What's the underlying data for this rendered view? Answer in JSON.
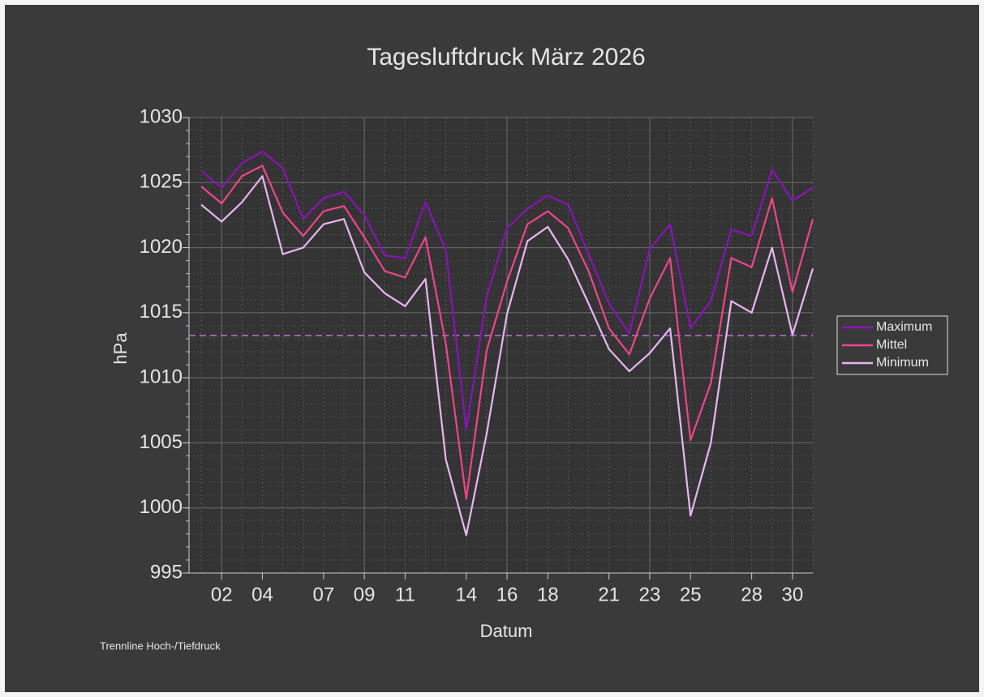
{
  "chart_data": {
    "type": "line",
    "title": "Tagesluftdruck März 2026",
    "xlabel": "Datum",
    "ylabel": "hPa",
    "x": [
      1,
      2,
      3,
      4,
      5,
      6,
      7,
      8,
      9,
      10,
      11,
      12,
      13,
      14,
      15,
      16,
      17,
      18,
      19,
      20,
      21,
      22,
      23,
      24,
      25,
      26,
      27,
      28,
      29,
      30,
      31
    ],
    "series": [
      {
        "name": "Maximum",
        "color": "#8a12b8",
        "values": [
          1025.9,
          1024.6,
          1026.5,
          1027.4,
          1026.1,
          1022.2,
          1023.8,
          1024.3,
          1022.5,
          1019.4,
          1019.2,
          1023.5,
          1019.8,
          1006.0,
          1016.2,
          1021.5,
          1023.0,
          1024.0,
          1023.3,
          1019.5,
          1015.7,
          1013.4,
          1019.9,
          1021.8,
          1013.8,
          1015.9,
          1021.4,
          1020.9,
          1026.0,
          1023.6,
          1024.6
        ]
      },
      {
        "name": "Mittel",
        "color": "#f0448c",
        "values": [
          1024.7,
          1023.4,
          1025.5,
          1026.3,
          1022.7,
          1020.9,
          1022.8,
          1023.2,
          1020.8,
          1018.2,
          1017.7,
          1020.8,
          1012.6,
          1000.7,
          1012.1,
          1017.4,
          1021.8,
          1022.8,
          1021.5,
          1018.2,
          1013.8,
          1011.8,
          1016.1,
          1019.2,
          1005.2,
          1009.6,
          1019.2,
          1018.5,
          1023.8,
          1016.6,
          1022.2
        ]
      },
      {
        "name": "Minimum",
        "color": "#e8b6f2",
        "values": [
          1023.3,
          1022.0,
          1023.5,
          1025.5,
          1019.5,
          1020.0,
          1021.8,
          1022.2,
          1018.1,
          1016.5,
          1015.5,
          1017.6,
          1003.7,
          997.9,
          1005.7,
          1014.9,
          1020.5,
          1021.6,
          1019.1,
          1015.7,
          1012.2,
          1010.5,
          1011.9,
          1013.8,
          999.4,
          1005.0,
          1015.9,
          1015.0,
          1020.0,
          1013.3,
          1018.4
        ]
      }
    ],
    "xlim": [
      0.4,
      31
    ],
    "xticks": [
      {
        "value": 2,
        "label": "02"
      },
      {
        "value": 4,
        "label": "04"
      },
      {
        "value": 7,
        "label": "07"
      },
      {
        "value": 9,
        "label": "09"
      },
      11,
      14,
      16,
      18,
      21,
      23,
      25,
      28,
      30
    ],
    "xgrid_major": [
      2,
      9,
      16,
      23,
      30
    ],
    "ylim": [
      995,
      1030
    ],
    "yticks": [
      995,
      1000,
      1005,
      1010,
      1015,
      1020,
      1025,
      1030
    ],
    "grid": true,
    "reference_line": {
      "value": 1013.25,
      "color": "#b574d8",
      "label": "Trennline Hoch-/Tiefdruck"
    },
    "legend": "right"
  }
}
